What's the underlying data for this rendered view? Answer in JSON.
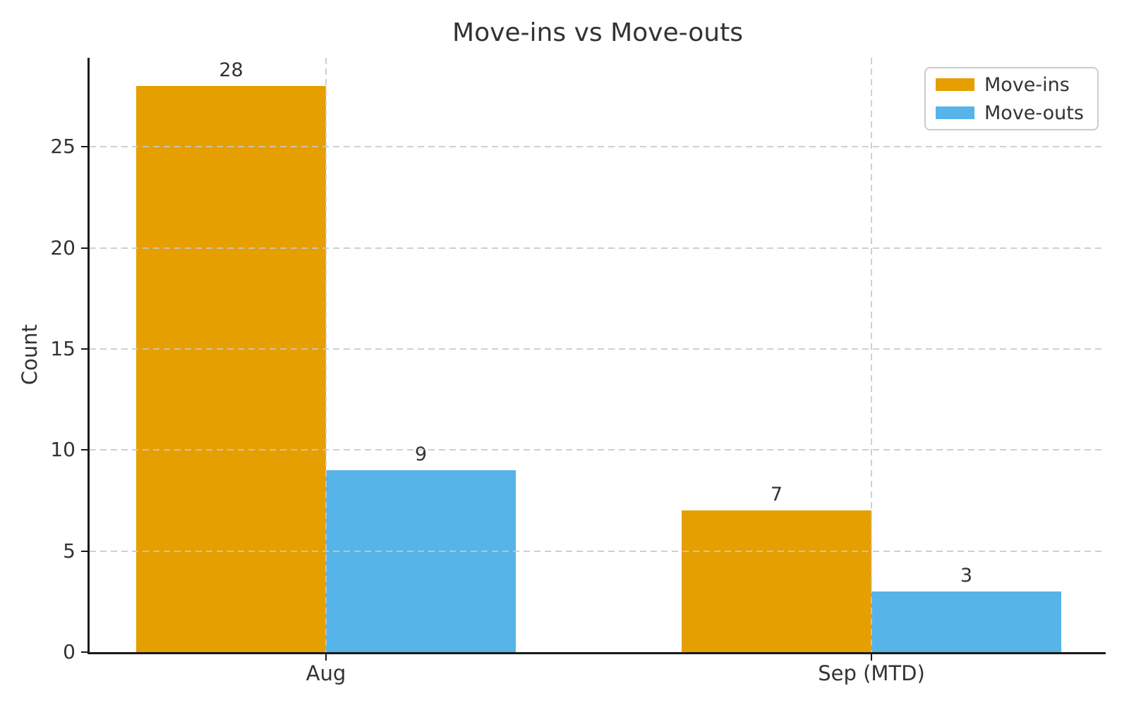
{
  "chart_data": {
    "type": "bar",
    "title": "Move-ins vs Move-outs",
    "xlabel": "",
    "ylabel": "Count",
    "categories": [
      "Aug",
      "Sep (MTD)"
    ],
    "series": [
      {
        "name": "Move-ins",
        "color": "#E69F00",
        "values": [
          28,
          7
        ]
      },
      {
        "name": "Move-outs",
        "color": "#56B4E9",
        "values": [
          9,
          3
        ]
      }
    ],
    "value_labels": [
      [
        "28",
        "9"
      ],
      [
        "7",
        "3"
      ]
    ],
    "show_value_labels": true,
    "ylim": [
      0,
      29.4
    ],
    "yticks": [
      0,
      5,
      10,
      15,
      20,
      25
    ],
    "grid": "dashed",
    "grid_over_bars": true,
    "legend_position": "upper right",
    "colors": {
      "text": "#333333",
      "spine": "#1a1a1a",
      "grid": "#c8c8c8",
      "legend_border": "#cccccc",
      "background": "#ffffff"
    }
  }
}
